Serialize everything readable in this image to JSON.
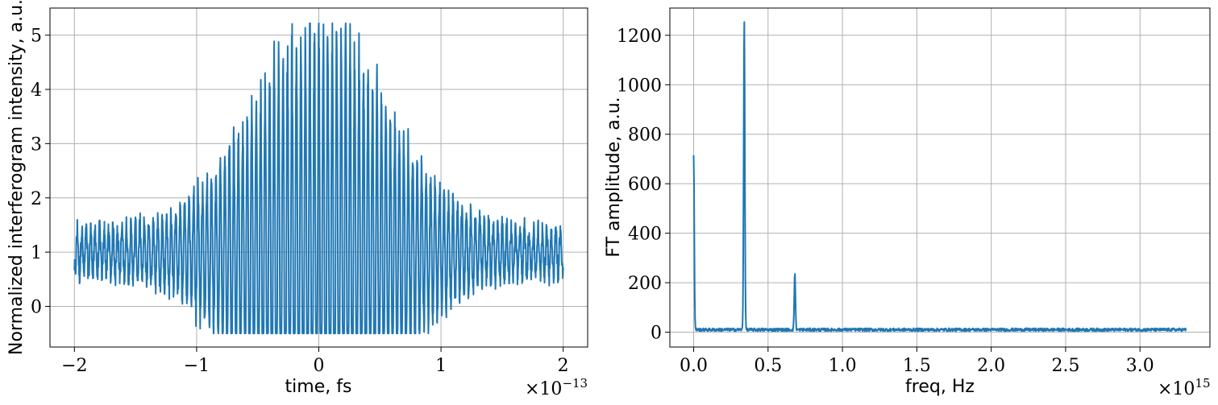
{
  "chart_data": [
    {
      "type": "line",
      "title": "",
      "xlabel": "time, fs",
      "ylabel": "Normalized interferogram intensity, a.u.",
      "x_multiplier_label": "×10",
      "x_multiplier_exp": "−13",
      "xlim": [
        -2.2,
        2.2
      ],
      "ylim": [
        -0.75,
        5.5
      ],
      "grid": true,
      "xticks": [
        -2,
        -1,
        0,
        1,
        2
      ],
      "xtick_labels": [
        "−2",
        "−1",
        "0",
        "1",
        "2"
      ],
      "yticks": [
        0,
        1,
        2,
        3,
        4,
        5
      ],
      "ytick_labels": [
        "0",
        "1",
        "2",
        "3",
        "4",
        "5"
      ],
      "series": [
        {
          "color": "#1f77b4",
          "description_of_signal": "interferogram: oscillating fringes around baseline 1 with Gaussian envelope peaking ~5.2 at x=0",
          "baseline": 1.0,
          "envelope_peak": 4.2,
          "envelope_sigma": 0.55,
          "fringe_period": 0.0366,
          "noise": 0.2,
          "x_start": -2.0,
          "x_end": 2.0
        }
      ]
    },
    {
      "type": "line",
      "title": "",
      "xlabel": "freq, Hz",
      "ylabel": "FT amplitude, a.u.",
      "x_multiplier_label": "×10",
      "x_multiplier_exp": "15",
      "xlim": [
        -0.16,
        3.47
      ],
      "ylim": [
        -60,
        1310
      ],
      "grid": true,
      "xticks": [
        0.0,
        0.5,
        1.0,
        1.5,
        2.0,
        2.5,
        3.0
      ],
      "xtick_labels": [
        "0.0",
        "0.5",
        "1.0",
        "1.5",
        "2.0",
        "2.5",
        "3.0"
      ],
      "yticks": [
        0,
        200,
        400,
        600,
        800,
        1000,
        1200
      ],
      "ytick_labels": [
        "0",
        "200",
        "400",
        "600",
        "800",
        "1000",
        "1200"
      ],
      "series": [
        {
          "color": "#1f77b4",
          "x_start": 0.0,
          "x_end": 3.31,
          "baseline": 10,
          "noise": 6,
          "peaks": [
            {
              "x": 0.0,
              "y": 710,
              "width": 0.004
            },
            {
              "x": 0.34,
              "y": 1250,
              "width": 0.004
            },
            {
              "x": 0.68,
              "y": 230,
              "width": 0.004
            }
          ]
        }
      ]
    }
  ]
}
